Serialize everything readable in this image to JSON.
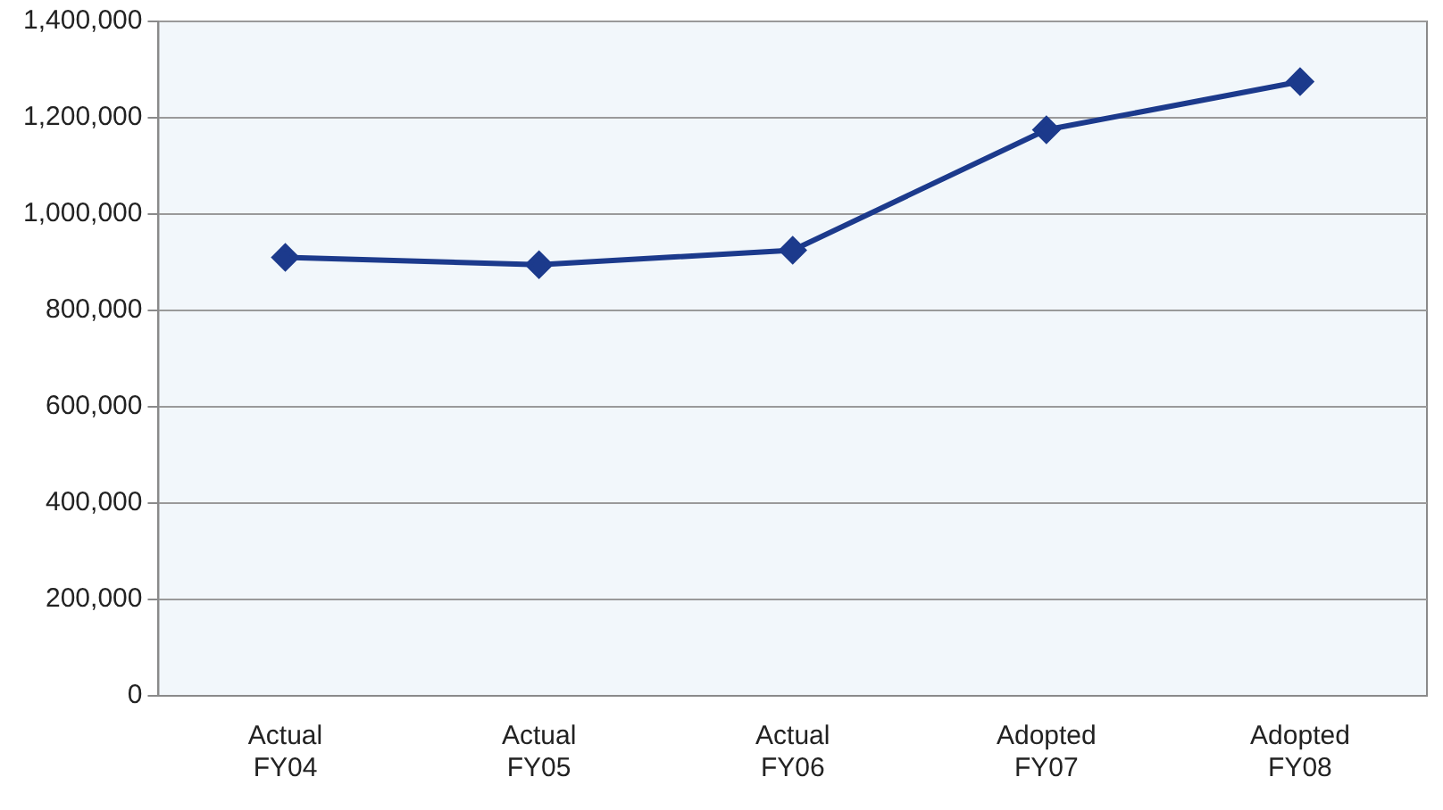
{
  "chart_data": {
    "type": "line",
    "categories": [
      "Actual FY04",
      "Actual FY05",
      "Actual FY06",
      "Adopted FY07",
      "Adopted FY08"
    ],
    "series": [
      {
        "color": "#1c3a8c",
        "values": [
          910000,
          895000,
          925000,
          1175000,
          1275000
        ]
      }
    ],
    "ylim": [
      0,
      1400000
    ],
    "yticks": [
      {
        "value": 0,
        "label": "0"
      },
      {
        "value": 200000,
        "label": "200,000"
      },
      {
        "value": 400000,
        "label": "400,000"
      },
      {
        "value": 600000,
        "label": "600,000"
      },
      {
        "value": 800000,
        "label": "800,000"
      },
      {
        "value": 1000000,
        "label": "1,000,000"
      },
      {
        "value": 1200000,
        "label": "1,200,000"
      },
      {
        "value": 1400000,
        "label": "1,400,000"
      }
    ],
    "grid": "y",
    "legend": false,
    "marker": "diamond",
    "line_style": "solid"
  }
}
